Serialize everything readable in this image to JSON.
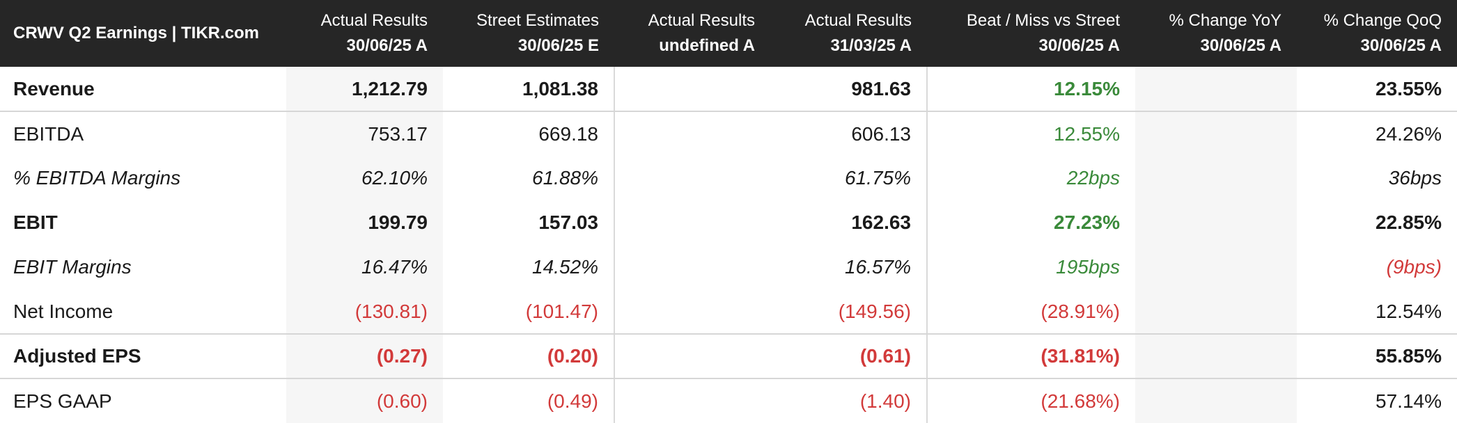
{
  "table": {
    "title": "CRWV Q2 Earnings | TIKR.com",
    "columns": [
      {
        "top": "Actual Results",
        "bottom": "30/06/25 A"
      },
      {
        "top": "Street Estimates",
        "bottom": "30/06/25 E"
      },
      {
        "top": "Actual Results",
        "bottom": "undefined A"
      },
      {
        "top": "Actual Results",
        "bottom": "31/03/25 A"
      },
      {
        "top": "Beat / Miss vs Street",
        "bottom": "30/06/25 A"
      },
      {
        "top": "% Change YoY",
        "bottom": "30/06/25 A"
      },
      {
        "top": "% Change QoQ",
        "bottom": "30/06/25 A"
      }
    ],
    "rows": [
      {
        "label": "Revenue",
        "actual": "1,212.79",
        "estimate": "1,081.38",
        "undefined_actual": "",
        "prior_actual": "981.63",
        "beat_miss": "12.15%",
        "yoy": "",
        "qoq": "23.55%"
      },
      {
        "label": "EBITDA",
        "actual": "753.17",
        "estimate": "669.18",
        "undefined_actual": "",
        "prior_actual": "606.13",
        "beat_miss": "12.55%",
        "yoy": "",
        "qoq": "24.26%"
      },
      {
        "label": "% EBITDA Margins",
        "actual": "62.10%",
        "estimate": "61.88%",
        "undefined_actual": "",
        "prior_actual": "61.75%",
        "beat_miss": "22bps",
        "yoy": "",
        "qoq": "36bps"
      },
      {
        "label": "EBIT",
        "actual": "199.79",
        "estimate": "157.03",
        "undefined_actual": "",
        "prior_actual": "162.63",
        "beat_miss": "27.23%",
        "yoy": "",
        "qoq": "22.85%"
      },
      {
        "label": "EBIT Margins",
        "actual": "16.47%",
        "estimate": "14.52%",
        "undefined_actual": "",
        "prior_actual": "16.57%",
        "beat_miss": "195bps",
        "yoy": "",
        "qoq": "(9bps)"
      },
      {
        "label": "Net Income",
        "actual": "(130.81)",
        "estimate": "(101.47)",
        "undefined_actual": "",
        "prior_actual": "(149.56)",
        "beat_miss": "(28.91%)",
        "yoy": "",
        "qoq": "12.54%"
      },
      {
        "label": "Adjusted EPS",
        "actual": "(0.27)",
        "estimate": "(0.20)",
        "undefined_actual": "",
        "prior_actual": "(0.61)",
        "beat_miss": "(31.81%)",
        "yoy": "",
        "qoq": "55.85%"
      },
      {
        "label": "EPS GAAP",
        "actual": "(0.60)",
        "estimate": "(0.49)",
        "undefined_actual": "",
        "prior_actual": "(1.40)",
        "beat_miss": "(21.68%)",
        "yoy": "",
        "qoq": "57.14%"
      }
    ]
  },
  "colors": {
    "header_bg": "#262626",
    "positive": "#3a8a3a",
    "negative": "#d23a3a",
    "shade": "#f6f6f6"
  }
}
